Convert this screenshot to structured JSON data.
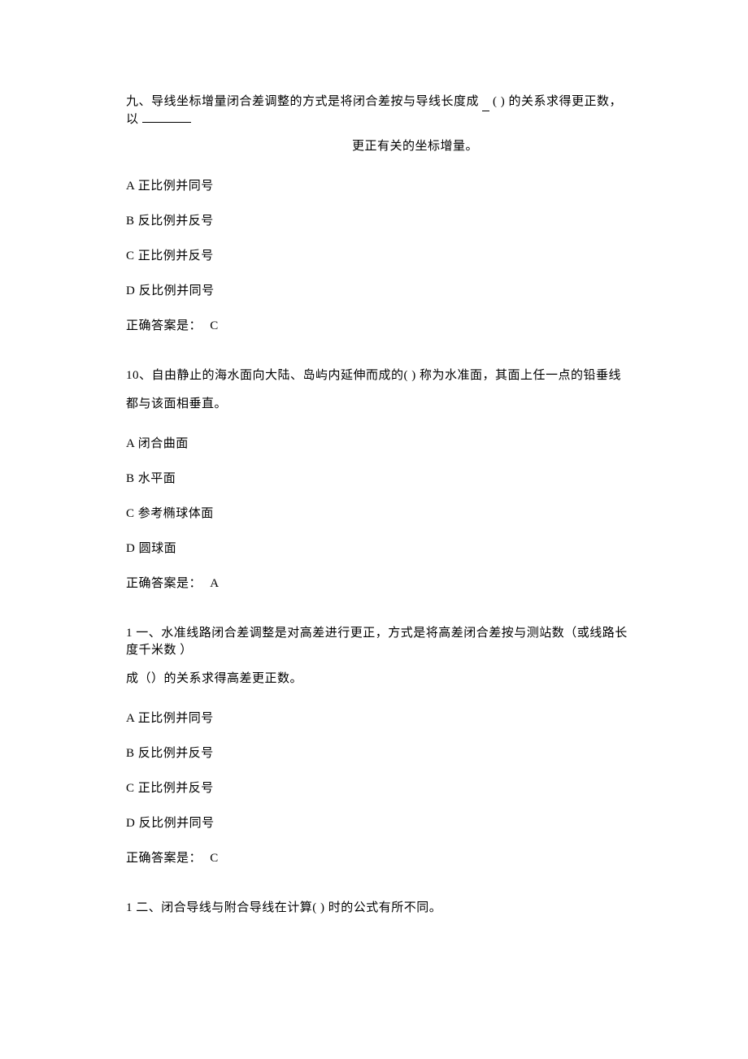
{
  "questions": [
    {
      "stem_line1_a": "九、导线坐标增量闭合差调整的方式是将闭合差按与导线长度成",
      "stem_line1_b": "( ) 的关系求得更正数，以",
      "stem_line2": "更正有关的坐标增量。",
      "options": [
        "A 正比例并同号",
        "B 反比例并反号",
        "C 正比例并反号",
        "D 反比例并同号"
      ],
      "answer_label": "正确答案是：",
      "answer_value": "C"
    },
    {
      "stem_line1": "10、自由静止的海水面向大陆、岛屿内延伸而成的( ) 称为水准面，其面上任一点的铅垂线",
      "stem_line2": "都与该面相垂直。",
      "options": [
        "A 闭合曲面",
        "B 水平面",
        "C 参考椭球体面",
        "D 圆球面"
      ],
      "answer_label": "正确答案是：",
      "answer_value": "A"
    },
    {
      "stem_line1": "1 一、水准线路闭合差调整是对高差进行更正，方式是将高差闭合差按与测站数（或线路长  度千米数 ）",
      "stem_line2": "成（）的关系求得高差更正数。",
      "options": [
        "A 正比例并同号",
        "B 反比例并反号",
        "C 正比例并反号",
        "D 反比例并同号"
      ],
      "answer_label": "正确答案是：",
      "answer_value": "C"
    },
    {
      "stem_line1": "1 二、闭合导线与附合导线在计算( ) 时的公式有所不同。"
    }
  ]
}
